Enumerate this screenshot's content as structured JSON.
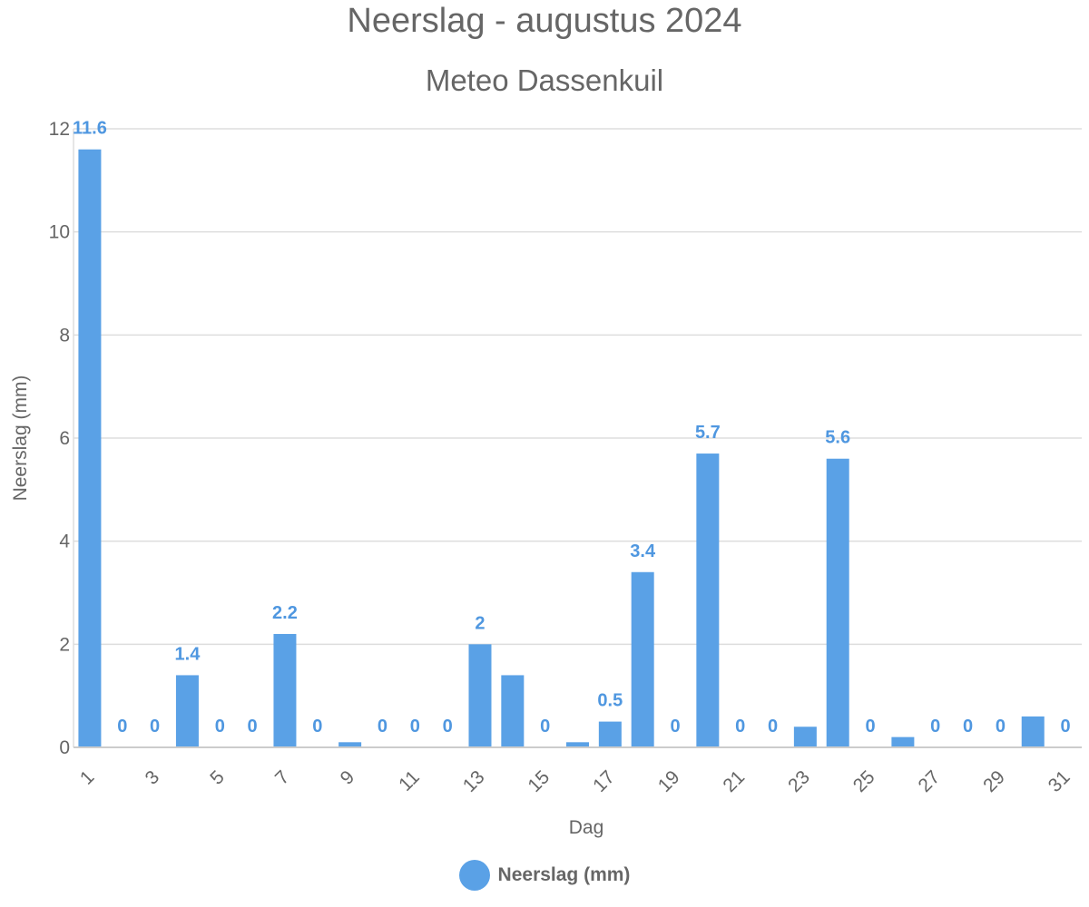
{
  "colors": {
    "bar": "#5aa1e6",
    "label": "#4f97e0",
    "grid": "#dddddd",
    "text": "#666666"
  },
  "chart_data": {
    "type": "bar",
    "title": "Neerslag - augustus 2024",
    "subtitle": "Meteo Dassenkuil",
    "xlabel": "Dag",
    "ylabel": "Neerslag (mm)",
    "ylim": [
      0,
      12
    ],
    "y_ticks": [
      "0",
      "2",
      "4",
      "6",
      "8",
      "10",
      "12"
    ],
    "grid": true,
    "legend_position": "bottom-center",
    "categories": [
      "1",
      "2",
      "3",
      "4",
      "5",
      "6",
      "7",
      "8",
      "9",
      "10",
      "11",
      "12",
      "13",
      "14",
      "15",
      "16",
      "17",
      "18",
      "19",
      "20",
      "21",
      "22",
      "23",
      "24",
      "25",
      "26",
      "27",
      "28",
      "29",
      "30",
      "31"
    ],
    "x_tick_labels": [
      "1",
      "3",
      "5",
      "7",
      "9",
      "11",
      "13",
      "15",
      "17",
      "19",
      "21",
      "23",
      "25",
      "27",
      "29",
      "31"
    ],
    "series": [
      {
        "name": "Neerslag (mm)",
        "values": [
          11.6,
          0,
          0,
          1.4,
          0,
          0,
          2.2,
          0,
          0.1,
          0,
          0,
          0,
          2,
          1.4,
          0,
          0.1,
          0.5,
          3.4,
          0,
          5.7,
          0,
          0,
          0.4,
          5.6,
          0,
          0.2,
          0,
          0,
          0,
          0.6,
          0
        ]
      }
    ],
    "data_labels": [
      {
        "day": 1,
        "text": "11.6"
      },
      {
        "day": 2,
        "text": "0"
      },
      {
        "day": 3,
        "text": "0"
      },
      {
        "day": 4,
        "text": "1.4"
      },
      {
        "day": 5,
        "text": "0"
      },
      {
        "day": 6,
        "text": "0"
      },
      {
        "day": 7,
        "text": "2.2"
      },
      {
        "day": 8,
        "text": "0"
      },
      {
        "day": 10,
        "text": "0"
      },
      {
        "day": 11,
        "text": "0"
      },
      {
        "day": 12,
        "text": "0"
      },
      {
        "day": 13,
        "text": "2"
      },
      {
        "day": 15,
        "text": "0"
      },
      {
        "day": 17,
        "text": "0.5"
      },
      {
        "day": 18,
        "text": "3.4"
      },
      {
        "day": 19,
        "text": "0"
      },
      {
        "day": 20,
        "text": "5.7"
      },
      {
        "day": 21,
        "text": "0"
      },
      {
        "day": 22,
        "text": "0"
      },
      {
        "day": 24,
        "text": "5.6"
      },
      {
        "day": 25,
        "text": "0"
      },
      {
        "day": 27,
        "text": "0"
      },
      {
        "day": 28,
        "text": "0"
      },
      {
        "day": 29,
        "text": "0"
      },
      {
        "day": 31,
        "text": "0"
      }
    ]
  }
}
